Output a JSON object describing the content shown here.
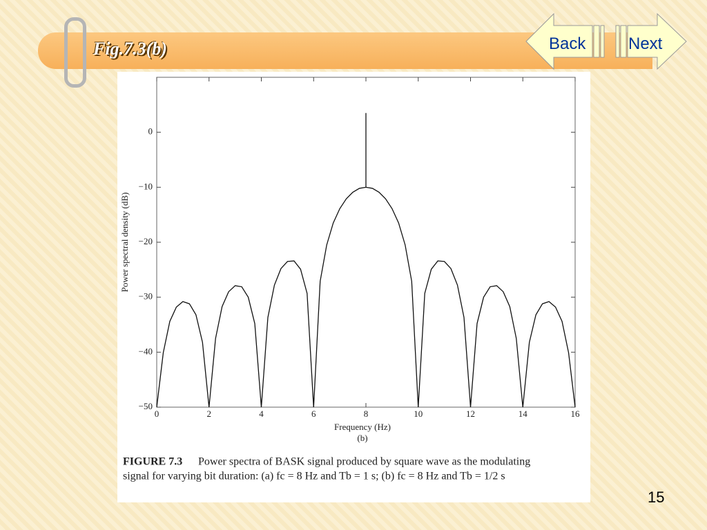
{
  "slide": {
    "title": "Fig.7.3(b)",
    "back": "Back",
    "next": "Next",
    "page_number": "15"
  },
  "figure": {
    "figure_label": "FIGURE 7.3",
    "caption_line1": "Power spectra of BASK signal produced by square wave as the modulating",
    "caption_line2": "signal for varying bit duration: (a) fc = 8 Hz and Tb = 1 s; (b) fc = 8 Hz and Tb = 1/2 s"
  },
  "chart_data": {
    "type": "line",
    "subtitle": "(b)",
    "x_label": "Frequency (Hz)",
    "y_label": "Power spectral density (dB)",
    "x": [
      0,
      0.25,
      0.5,
      0.75,
      1,
      1.25,
      1.5,
      1.75,
      2,
      2.25,
      2.5,
      2.75,
      3,
      3.25,
      3.5,
      3.75,
      4,
      4.25,
      4.5,
      4.75,
      5,
      5.25,
      5.5,
      5.75,
      6,
      6.25,
      6.5,
      6.75,
      7,
      7.25,
      7.5,
      7.75,
      8,
      8,
      8,
      8.25,
      8.5,
      8.75,
      9,
      9.25,
      9.5,
      9.75,
      10,
      10.25,
      10.5,
      10.75,
      11,
      11.25,
      11.5,
      11.75,
      12,
      12.25,
      12.5,
      12.75,
      13,
      13.25,
      13.5,
      13.75,
      14,
      14.25,
      14.5,
      14.75,
      15,
      15.25,
      15.5,
      15.75,
      16
    ],
    "series": [
      {
        "color": "#111111",
        "values": [
          -50,
          -40.1,
          -34.4,
          -31.8,
          -30.8,
          -31.2,
          -33.2,
          -38.2,
          -50,
          -37.5,
          -31.7,
          -29.0,
          -27.9,
          -28.1,
          -30,
          -34.8,
          -50,
          -33.7,
          -27.8,
          -24.8,
          -23.5,
          -23.4,
          -24.9,
          -29.3,
          -50,
          -27.1,
          -20.5,
          -16.5,
          -13.9,
          -12.1,
          -10.9,
          -10.2,
          -10,
          3.5,
          -10,
          -10.2,
          -10.9,
          -12.1,
          -13.9,
          -16.5,
          -20.5,
          -27.1,
          -50,
          -29.3,
          -24.9,
          -23.4,
          -23.5,
          -24.8,
          -27.8,
          -33.7,
          -50,
          -34.8,
          -30,
          -28.1,
          -27.9,
          -29.0,
          -31.7,
          -37.5,
          -50,
          -38.2,
          -33.2,
          -31.2,
          -30.8,
          -31.8,
          -34.4,
          -40.1,
          -50
        ]
      }
    ],
    "xlim": [
      0,
      16
    ],
    "xticks": [
      0,
      2,
      4,
      6,
      8,
      10,
      12,
      14,
      16
    ],
    "ylim": [
      -50,
      10
    ],
    "yticks": [
      {
        "value": -50,
        "label": "−50"
      },
      {
        "value": -40,
        "label": "−40"
      },
      {
        "value": -30,
        "label": "−30"
      },
      {
        "value": -20,
        "label": "−20"
      },
      {
        "value": -10,
        "label": "−10"
      },
      0
    ],
    "grid": false
  }
}
